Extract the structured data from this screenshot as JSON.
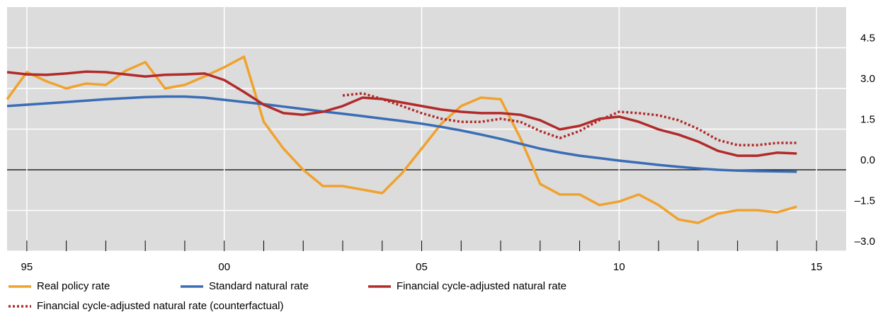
{
  "chart_data": {
    "type": "line",
    "x": [
      1994.5,
      1995,
      1995.5,
      1996,
      1996.5,
      1997,
      1997.5,
      1998,
      1998.5,
      1999,
      1999.5,
      2000,
      2000.5,
      2001,
      2001.5,
      2002,
      2002.5,
      2003,
      2003.5,
      2004,
      2004.5,
      2005,
      2005.5,
      2006,
      2006.5,
      2007,
      2007.5,
      2008,
      2008.5,
      2009,
      2009.5,
      2010,
      2010.5,
      2011,
      2011.5,
      2012,
      2012.5,
      2013,
      2013.5,
      2014,
      2014.5
    ],
    "series": [
      {
        "name": "Real policy rate",
        "color": "#f0a22e",
        "style": "solid",
        "values": [
          2.6,
          3.6,
          3.26,
          3.0,
          3.18,
          3.13,
          3.65,
          3.97,
          3.0,
          3.13,
          3.44,
          3.78,
          4.17,
          1.77,
          0.78,
          0.0,
          -0.6,
          -0.6,
          -0.73,
          -0.86,
          -0.13,
          0.78,
          1.7,
          2.35,
          2.66,
          2.6,
          1.17,
          -0.52,
          -0.91,
          -0.91,
          -1.3,
          -1.17,
          -0.91,
          -1.3,
          -1.83,
          -1.96,
          -1.62,
          -1.49,
          -1.49,
          -1.57,
          -1.36
        ]
      },
      {
        "name": "Standard natural rate",
        "color": "#3a6db5",
        "style": "solid",
        "values": [
          2.35,
          2.4,
          2.45,
          2.5,
          2.55,
          2.6,
          2.64,
          2.68,
          2.7,
          2.7,
          2.66,
          2.58,
          2.5,
          2.42,
          2.33,
          2.24,
          2.15,
          2.07,
          1.98,
          1.89,
          1.8,
          1.7,
          1.58,
          1.45,
          1.3,
          1.14,
          0.96,
          0.78,
          0.64,
          0.52,
          0.43,
          0.34,
          0.26,
          0.18,
          0.11,
          0.05,
          0.0,
          -0.03,
          -0.05,
          -0.06,
          -0.07
        ]
      },
      {
        "name": "Financial cycle-adjusted natural rate",
        "color": "#b22a2a",
        "style": "solid",
        "values": [
          3.6,
          3.52,
          3.5,
          3.55,
          3.62,
          3.6,
          3.52,
          3.44,
          3.5,
          3.52,
          3.55,
          3.31,
          2.87,
          2.4,
          2.09,
          2.03,
          2.14,
          2.35,
          2.66,
          2.61,
          2.48,
          2.35,
          2.22,
          2.14,
          2.09,
          2.09,
          2.03,
          1.83,
          1.49,
          1.62,
          1.88,
          1.96,
          1.77,
          1.49,
          1.3,
          1.04,
          0.7,
          0.52,
          0.52,
          0.63,
          0.6
        ]
      },
      {
        "name": "Financial cycle-adjusted natural rate (counterfactual)",
        "color": "#b22a2a",
        "style": "dotted",
        "values": [
          null,
          null,
          null,
          null,
          null,
          null,
          null,
          null,
          null,
          null,
          null,
          null,
          null,
          null,
          null,
          null,
          null,
          2.74,
          2.82,
          2.61,
          2.35,
          2.09,
          1.88,
          1.77,
          1.77,
          1.88,
          1.77,
          1.43,
          1.17,
          1.43,
          1.83,
          2.14,
          2.09,
          2.01,
          1.83,
          1.51,
          1.1,
          0.91,
          0.91,
          0.99,
          0.99
        ]
      }
    ],
    "xlim": [
      1994.5,
      2015.75
    ],
    "xticks": [
      {
        "value": 1995,
        "label": "95"
      },
      {
        "value": 2000,
        "label": "00"
      },
      {
        "value": 2005,
        "label": "05"
      },
      {
        "value": 2010,
        "label": "10"
      },
      {
        "value": 2015,
        "label": "15"
      }
    ],
    "xminorticks": [
      1995,
      1996,
      1997,
      1998,
      1999,
      2000,
      2001,
      2002,
      2003,
      2004,
      2005,
      2006,
      2007,
      2008,
      2009,
      2010,
      2011,
      2012,
      2013,
      2014,
      2015
    ],
    "ylim": [
      -3,
      6
    ],
    "yticks": [
      {
        "value": -3,
        "label": "–3.0"
      },
      {
        "value": -1.5,
        "label": "–1.5"
      },
      {
        "value": 0,
        "label": "0.0"
      },
      {
        "value": 1.5,
        "label": "1.5"
      },
      {
        "value": 3,
        "label": "3.0"
      },
      {
        "value": 4.5,
        "label": "4.5"
      }
    ],
    "grid": true
  }
}
